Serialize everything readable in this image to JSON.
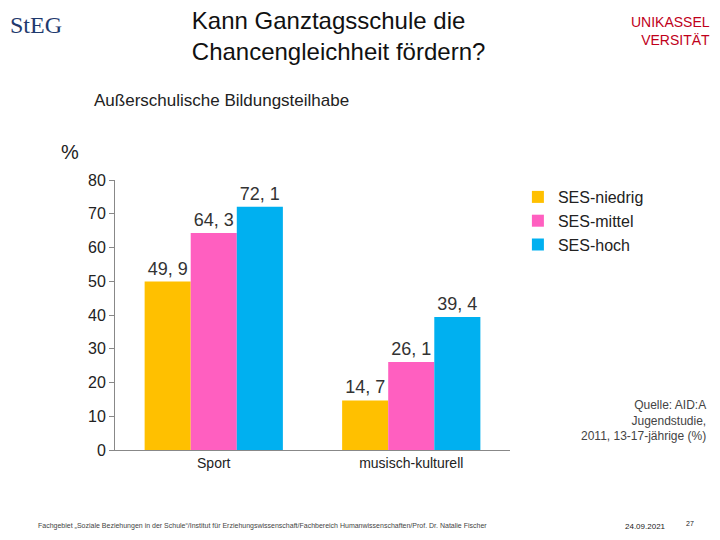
{
  "chart_data": {
    "type": "bar",
    "title": "Kann Ganztagsschule die Chancengleichheit fördern?",
    "subtitle": "Außerschulische Bildungsteilhabe",
    "y_label": "%",
    "categories": [
      "Sport",
      "musisch-kulturell"
    ],
    "series": [
      {
        "name": "SES-niedrig",
        "color": "#ffc000",
        "values": [
          49.9,
          14.7
        ],
        "value_labels": [
          "49, 9",
          "14, 7"
        ]
      },
      {
        "name": "SES-mittel",
        "color": "#ff5fc0",
        "values": [
          64.3,
          26.1
        ],
        "value_labels": [
          "64, 3",
          "26, 1"
        ]
      },
      {
        "name": "SES-hoch",
        "color": "#00b0f0",
        "values": [
          72.1,
          39.4
        ],
        "value_labels": [
          "72, 1",
          "39, 4"
        ]
      }
    ],
    "ylim": [
      0,
      80
    ],
    "yticks": [
      0,
      10,
      20,
      30,
      40,
      50,
      60,
      70,
      80
    ],
    "grid": false,
    "legend": "upper right",
    "data_labels": true,
    "annotations": [
      "StEG",
      [
        "UNIKASSEL",
        "VERSITÄT"
      ],
      [
        "Quelle: AID:A",
        "Jugendstudie,",
        "2011, 13-17-jährige (%)"
      ],
      "Fachgebiet „Soziale Beziehungen in der Schule“/Institut für Erziehungswissenschaft/Fachbereich Humanwissenschaften/Prof. Dr. Natalie Fischer",
      "24.09.2021",
      "27"
    ]
  }
}
